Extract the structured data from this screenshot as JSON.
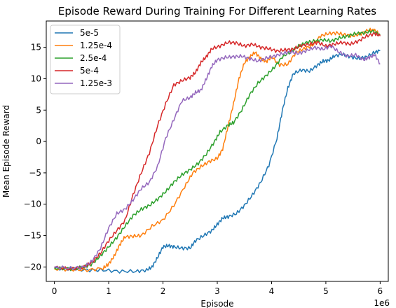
{
  "chart_data": {
    "type": "line",
    "title": "Episode Reward During Training For Different Learning Rates",
    "xlabel": "Episode",
    "ylabel": "Mean Episode Reward",
    "x_offset_label": "1e6",
    "xlim": [
      -0.15,
      6.15
    ],
    "ylim": [
      -22.3,
      19.2
    ],
    "x_ticks": [
      0,
      1,
      2,
      3,
      4,
      5,
      6
    ],
    "y_ticks": [
      -20,
      -15,
      -10,
      -5,
      0,
      5,
      10,
      15
    ],
    "grid": false,
    "legend_position": "top-left",
    "series": [
      {
        "name": "5e-5",
        "color": "#1f77b4",
        "points": [
          [
            0,
            -20.2
          ],
          [
            0.3,
            -20.3
          ],
          [
            0.6,
            -20.5
          ],
          [
            0.9,
            -20.5
          ],
          [
            1.2,
            -20.7
          ],
          [
            1.5,
            -20.7
          ],
          [
            1.7,
            -20.5
          ],
          [
            1.8,
            -20.0
          ],
          [
            1.9,
            -18.5
          ],
          [
            2.0,
            -16.8
          ],
          [
            2.1,
            -16.6
          ],
          [
            2.2,
            -16.8
          ],
          [
            2.35,
            -17.0
          ],
          [
            2.5,
            -17.0
          ],
          [
            2.6,
            -15.8
          ],
          [
            2.75,
            -15.0
          ],
          [
            2.9,
            -14.2
          ],
          [
            3.0,
            -13.2
          ],
          [
            3.1,
            -12.2
          ],
          [
            3.2,
            -12.0
          ],
          [
            3.35,
            -11.5
          ],
          [
            3.5,
            -10.2
          ],
          [
            3.65,
            -8.5
          ],
          [
            3.8,
            -6.5
          ],
          [
            3.95,
            -3.8
          ],
          [
            4.1,
            0.5
          ],
          [
            4.2,
            5.0
          ],
          [
            4.3,
            8.5
          ],
          [
            4.4,
            10.8
          ],
          [
            4.55,
            11.4
          ],
          [
            4.7,
            11.2
          ],
          [
            4.85,
            12.2
          ],
          [
            4.95,
            12.8
          ],
          [
            5.05,
            12.9
          ],
          [
            5.15,
            13.6
          ],
          [
            5.3,
            13.9
          ],
          [
            5.45,
            13.5
          ],
          [
            5.6,
            13.2
          ],
          [
            5.75,
            13.5
          ],
          [
            5.9,
            14.2
          ],
          [
            6.0,
            14.5
          ]
        ]
      },
      {
        "name": "1.25e-4",
        "color": "#ff7f0e",
        "points": [
          [
            0,
            -20.3
          ],
          [
            0.3,
            -20.4
          ],
          [
            0.6,
            -20.5
          ],
          [
            0.9,
            -20.2
          ],
          [
            1.0,
            -19.5
          ],
          [
            1.1,
            -18.3
          ],
          [
            1.2,
            -16.5
          ],
          [
            1.3,
            -15.2
          ],
          [
            1.45,
            -15.1
          ],
          [
            1.6,
            -15.0
          ],
          [
            1.8,
            -13.5
          ],
          [
            2.0,
            -12.5
          ],
          [
            2.2,
            -10.2
          ],
          [
            2.4,
            -7.2
          ],
          [
            2.55,
            -5.0
          ],
          [
            2.7,
            -4.0
          ],
          [
            2.85,
            -3.2
          ],
          [
            3.0,
            -2.7
          ],
          [
            3.1,
            -1.2
          ],
          [
            3.2,
            2.5
          ],
          [
            3.3,
            6.0
          ],
          [
            3.4,
            10.0
          ],
          [
            3.5,
            12.5
          ],
          [
            3.6,
            13.5
          ],
          [
            3.7,
            14.2
          ],
          [
            3.8,
            13.2
          ],
          [
            3.9,
            12.7
          ],
          [
            4.0,
            13.5
          ],
          [
            4.15,
            12.2
          ],
          [
            4.3,
            12.3
          ],
          [
            4.45,
            14.2
          ],
          [
            4.6,
            14.8
          ],
          [
            4.75,
            15.3
          ],
          [
            4.9,
            16.8
          ],
          [
            5.05,
            17.2
          ],
          [
            5.2,
            17.3
          ],
          [
            5.35,
            17.0
          ],
          [
            5.5,
            16.8
          ],
          [
            5.65,
            17.2
          ],
          [
            5.8,
            17.8
          ],
          [
            5.9,
            17.7
          ],
          [
            6.0,
            17.0
          ]
        ]
      },
      {
        "name": "2.5e-4",
        "color": "#2ca02c",
        "points": [
          [
            0,
            -20.2
          ],
          [
            0.3,
            -20.3
          ],
          [
            0.55,
            -20.0
          ],
          [
            0.7,
            -19.5
          ],
          [
            0.85,
            -18.2
          ],
          [
            1.0,
            -16.8
          ],
          [
            1.15,
            -15.3
          ],
          [
            1.3,
            -13.5
          ],
          [
            1.45,
            -11.8
          ],
          [
            1.6,
            -10.8
          ],
          [
            1.75,
            -10.2
          ],
          [
            1.9,
            -9.2
          ],
          [
            2.05,
            -8.0
          ],
          [
            2.2,
            -6.5
          ],
          [
            2.35,
            -5.3
          ],
          [
            2.5,
            -4.5
          ],
          [
            2.65,
            -3.5
          ],
          [
            2.8,
            -2.0
          ],
          [
            2.95,
            0.0
          ],
          [
            3.05,
            1.5
          ],
          [
            3.2,
            2.6
          ],
          [
            3.3,
            3.0
          ],
          [
            3.45,
            5.0
          ],
          [
            3.6,
            7.5
          ],
          [
            3.75,
            9.3
          ],
          [
            3.9,
            10.5
          ],
          [
            4.05,
            11.8
          ],
          [
            4.2,
            13.5
          ],
          [
            4.35,
            14.3
          ],
          [
            4.5,
            15.2
          ],
          [
            4.65,
            15.8
          ],
          [
            4.8,
            16.0
          ],
          [
            4.95,
            16.2
          ],
          [
            5.1,
            16.0
          ],
          [
            5.25,
            16.5
          ],
          [
            5.4,
            16.8
          ],
          [
            5.55,
            17.2
          ],
          [
            5.7,
            17.3
          ],
          [
            5.85,
            17.6
          ],
          [
            6.0,
            17.1
          ]
        ]
      },
      {
        "name": "5e-4",
        "color": "#d62728",
        "points": [
          [
            0,
            -20.1
          ],
          [
            0.3,
            -20.3
          ],
          [
            0.55,
            -20.0
          ],
          [
            0.7,
            -19.2
          ],
          [
            0.85,
            -17.8
          ],
          [
            1.0,
            -15.8
          ],
          [
            1.15,
            -14.2
          ],
          [
            1.3,
            -12.6
          ],
          [
            1.45,
            -8.5
          ],
          [
            1.6,
            -5.0
          ],
          [
            1.75,
            -1.8
          ],
          [
            1.9,
            2.5
          ],
          [
            2.05,
            6.0
          ],
          [
            2.2,
            9.0
          ],
          [
            2.35,
            9.7
          ],
          [
            2.5,
            10.2
          ],
          [
            2.6,
            11.0
          ],
          [
            2.7,
            12.6
          ],
          [
            2.8,
            13.5
          ],
          [
            2.9,
            14.8
          ],
          [
            3.05,
            15.2
          ],
          [
            3.2,
            15.8
          ],
          [
            3.35,
            15.7
          ],
          [
            3.5,
            15.2
          ],
          [
            3.65,
            15.5
          ],
          [
            3.8,
            15.0
          ],
          [
            3.95,
            14.8
          ],
          [
            4.1,
            14.4
          ],
          [
            4.25,
            14.6
          ],
          [
            4.4,
            14.7
          ],
          [
            4.55,
            15.3
          ],
          [
            4.7,
            15.5
          ],
          [
            4.85,
            15.8
          ],
          [
            5.0,
            15.2
          ],
          [
            5.15,
            15.5
          ],
          [
            5.3,
            15.8
          ],
          [
            5.45,
            15.5
          ],
          [
            5.6,
            16.0
          ],
          [
            5.75,
            16.8
          ],
          [
            5.9,
            17.2
          ],
          [
            6.0,
            16.8
          ]
        ]
      },
      {
        "name": "1.25e-3",
        "color": "#9467bd",
        "points": [
          [
            0,
            -20.0
          ],
          [
            0.3,
            -20.2
          ],
          [
            0.55,
            -20.0
          ],
          [
            0.7,
            -19.0
          ],
          [
            0.85,
            -17.0
          ],
          [
            1.0,
            -13.8
          ],
          [
            1.15,
            -11.5
          ],
          [
            1.3,
            -10.8
          ],
          [
            1.45,
            -9.3
          ],
          [
            1.6,
            -7.5
          ],
          [
            1.75,
            -6.5
          ],
          [
            1.9,
            -4.0
          ],
          [
            2.05,
            0.5
          ],
          [
            2.2,
            3.5
          ],
          [
            2.35,
            6.5
          ],
          [
            2.5,
            7.0
          ],
          [
            2.6,
            7.8
          ],
          [
            2.7,
            8.2
          ],
          [
            2.8,
            10.0
          ],
          [
            2.9,
            12.0
          ],
          [
            3.0,
            13.0
          ],
          [
            3.15,
            13.4
          ],
          [
            3.3,
            13.5
          ],
          [
            3.45,
            13.6
          ],
          [
            3.6,
            13.2
          ],
          [
            3.75,
            12.8
          ],
          [
            3.9,
            13.3
          ],
          [
            4.05,
            13.6
          ],
          [
            4.2,
            14.0
          ],
          [
            4.35,
            14.3
          ],
          [
            4.5,
            14.0
          ],
          [
            4.65,
            14.5
          ],
          [
            4.8,
            15.0
          ],
          [
            4.95,
            14.7
          ],
          [
            5.1,
            15.2
          ],
          [
            5.25,
            14.2
          ],
          [
            5.4,
            13.6
          ],
          [
            5.55,
            13.8
          ],
          [
            5.7,
            13.0
          ],
          [
            5.8,
            13.4
          ],
          [
            5.9,
            13.8
          ],
          [
            6.0,
            12.4
          ]
        ]
      }
    ]
  }
}
